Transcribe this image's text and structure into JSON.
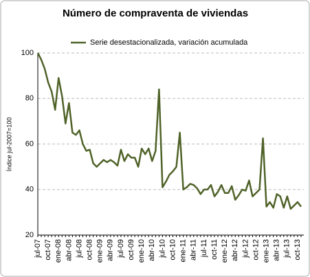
{
  "chart_data": {
    "type": "line",
    "title": "Número de compraventa de viviendas",
    "ylabel": "Índice jul-2007=100",
    "categories": [
      "jul-07",
      null,
      null,
      "oct-07",
      null,
      null,
      "ene-08",
      null,
      null,
      "abr-08",
      null,
      null,
      "jul-08",
      null,
      null,
      "oct-08",
      null,
      null,
      "ene-09",
      null,
      null,
      "abr-09",
      null,
      null,
      "jul-09",
      null,
      null,
      "oct-09",
      null,
      null,
      "ene-10",
      null,
      null,
      "abr-10",
      null,
      null,
      "jul-10",
      null,
      null,
      "oct-10",
      null,
      null,
      "ene-11",
      null,
      null,
      "abr-11",
      null,
      null,
      "jul-11",
      null,
      null,
      "oct-11",
      null,
      null,
      "ene-12",
      null,
      null,
      "abr-12",
      null,
      null,
      "jul-12",
      null,
      null,
      "oct-12",
      null,
      null,
      "ene-13",
      null,
      null,
      "abr-13",
      null,
      null,
      "jul-13",
      null,
      null,
      "oct-13",
      null
    ],
    "series": [
      {
        "name": "Serie desestacionalizada, variación acumulada",
        "color": "#4f6228",
        "values": [
          100,
          97,
          93,
          87,
          83,
          75,
          89,
          81,
          69,
          78,
          65,
          64,
          66,
          60,
          57,
          57.5,
          51.5,
          50,
          51.5,
          53,
          52,
          53,
          52,
          50.5,
          57.5,
          52.5,
          55.5,
          54,
          54,
          50,
          58,
          55.5,
          58,
          52.5,
          57,
          84,
          41,
          43.5,
          46.5,
          48,
          50,
          65,
          40,
          41,
          42.5,
          42,
          40.5,
          38,
          40,
          40,
          42,
          37,
          39,
          42,
          38.5,
          38.5,
          41.5,
          35.5,
          37.5,
          40,
          39.5,
          44,
          37,
          38.5,
          40,
          62.5,
          32.5,
          34.5,
          32,
          38,
          37,
          32,
          37,
          31.5,
          33,
          34.5,
          32.5
        ]
      }
    ],
    "ylim": [
      20,
      100
    ],
    "yticks": [
      20,
      40,
      60,
      80,
      100
    ],
    "grid": true,
    "legend": "top"
  }
}
